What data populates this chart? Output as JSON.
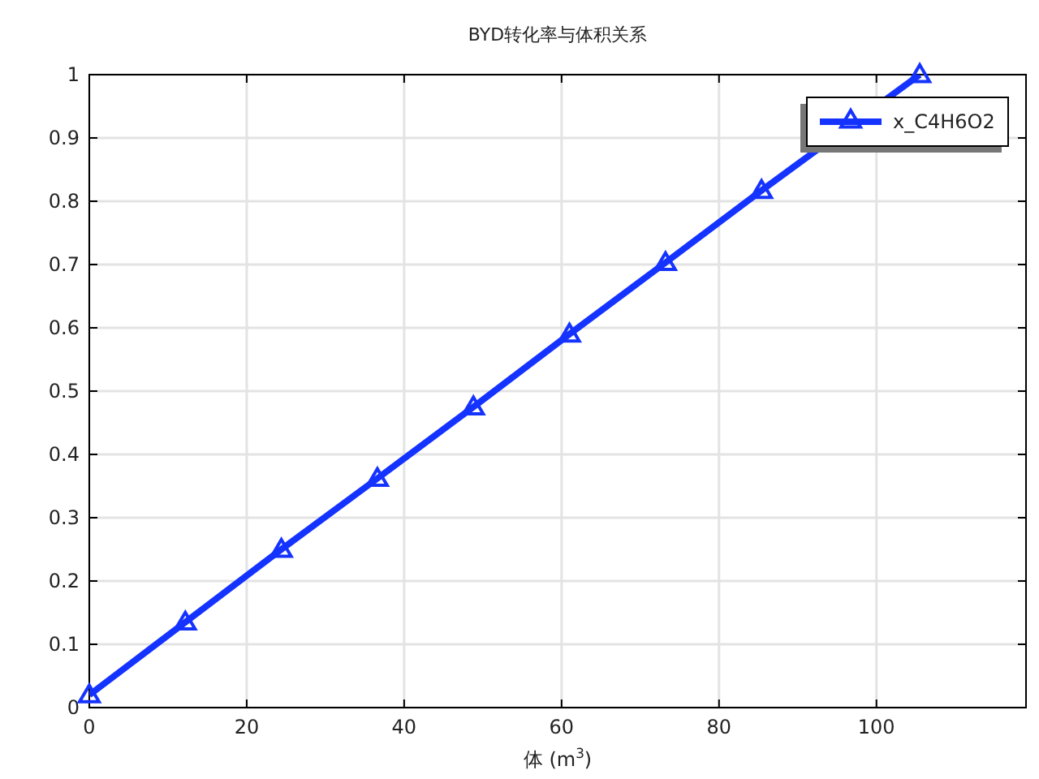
{
  "chart_data": {
    "type": "line",
    "title": "BYD转化率与体积关系",
    "xlabel": "体 (m$^{3}$)",
    "xlim": [
      0,
      119
    ],
    "ylim": [
      0,
      1
    ],
    "xticks": [
      0,
      20,
      40,
      60,
      80,
      100
    ],
    "yticks": [
      0,
      0.1,
      0.2,
      0.3,
      0.4,
      0.5,
      0.6,
      0.7,
      0.8,
      0.9,
      1
    ],
    "grid": true,
    "legend": "top right",
    "marker": "triangle",
    "line_style": "solid",
    "series": [
      {
        "name": "x_C4H6O2",
        "color": "#1533ff",
        "x": [
          0,
          12.2,
          24.4,
          36.6,
          48.8,
          61,
          73.2,
          85.4,
          105.5
        ],
        "values": [
          0.02,
          0.135,
          0.25,
          0.362,
          0.475,
          0.59,
          0.703,
          0.817,
          1.0
        ]
      }
    ]
  }
}
